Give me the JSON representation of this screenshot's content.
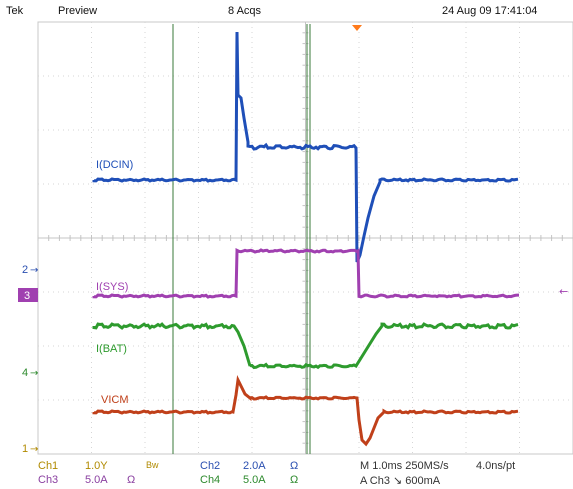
{
  "header": {
    "brand": "Tek",
    "mode": "Preview",
    "acqs": "8 Acqs",
    "datetime": "24 Aug 09 17:41:04"
  },
  "traces": [
    {
      "label": "I(DCIN)",
      "color": "#1f4fb8"
    },
    {
      "label": "I(SYS)",
      "color": "#a040b0"
    },
    {
      "label": "I(BAT)",
      "color": "#2e9b2e"
    },
    {
      "label": "VICM",
      "color": "#c0401a"
    }
  ],
  "channel_markers": {
    "ch2": "2",
    "ch3": "3",
    "ch4": "4",
    "ch1": "1"
  },
  "footer": {
    "row1": {
      "ch1": "Ch1",
      "ch1_scale": "1.0Y",
      "bw": "Bw",
      "ch2": "Ch2",
      "ch2_scale": "2.0A",
      "ch2_unit": "Ω",
      "timebase": "M 1.0ms 250MS/s",
      "resolution": "4.0ns/pt"
    },
    "row2": {
      "ch3": "Ch3",
      "ch3_scale": "5.0A",
      "ch3_unit": "Ω",
      "ch4": "Ch4",
      "ch4_scale": "5.0A",
      "ch4_unit": "Ω",
      "trigger": "A  Ch3  ↘  600mA"
    }
  },
  "colors": {
    "grid": "#c8c8c8",
    "cursor": "#3a7a3a",
    "trigger_marker": "#ff7a1a",
    "ch3_marker_bg": "#a040b0"
  }
}
